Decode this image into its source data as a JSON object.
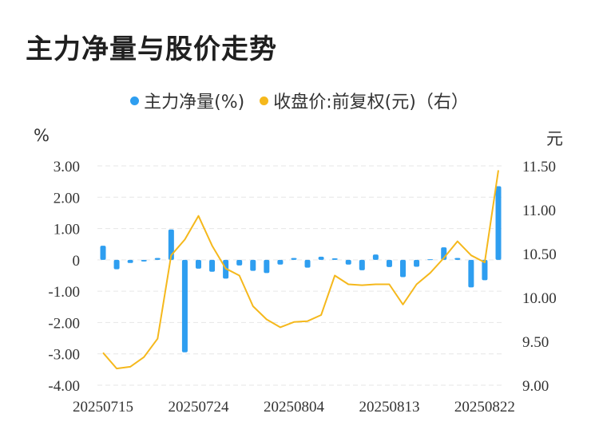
{
  "chart_data": {
    "type": "bar",
    "title": "主力净量与股价走势",
    "legend": [
      {
        "label": "主力净量(%)",
        "color": "#2e9ef0"
      },
      {
        "label": "收盘价:前复权(元)（右）",
        "color": "#f5b81c"
      }
    ],
    "y_left_unit": "%",
    "y_right_unit": "元",
    "y_left_range": [
      -4,
      3
    ],
    "y_left_ticks": [
      "3.00",
      "2.00",
      "1.00",
      "0",
      "-1.00",
      "-2.00",
      "-3.00",
      "-4.00"
    ],
    "y_right_range": [
      9.0,
      11.5
    ],
    "y_right_ticks": [
      "11.50",
      "11.00",
      "10.50",
      "10.00",
      "9.50",
      "9.00"
    ],
    "x_tick_labels": [
      "20250715",
      "20250724",
      "20250804",
      "20250813",
      "20250822"
    ],
    "x_tick_indices": [
      0,
      7,
      14,
      21,
      28
    ],
    "series": [
      {
        "name": "主力净量(%)",
        "type": "bar",
        "axis": "left",
        "color": "#2e9ef0",
        "values": [
          0.45,
          -0.3,
          -0.1,
          -0.05,
          0.06,
          0.97,
          -2.95,
          -0.28,
          -0.38,
          -0.6,
          -0.18,
          -0.35,
          -0.42,
          -0.15,
          0.06,
          -0.25,
          0.1,
          0.05,
          -0.15,
          -0.33,
          0.17,
          -0.23,
          -0.55,
          -0.22,
          0.02,
          0.4,
          0.06,
          -0.88,
          -0.65,
          2.35
        ]
      },
      {
        "name": "收盘价:前复权(元)（右）",
        "type": "line",
        "axis": "right",
        "color": "#f5b81c",
        "values": [
          9.37,
          9.19,
          9.21,
          9.32,
          9.53,
          10.48,
          10.66,
          10.93,
          10.59,
          10.33,
          10.25,
          9.9,
          9.75,
          9.66,
          9.72,
          9.73,
          9.8,
          10.25,
          10.15,
          10.14,
          10.15,
          10.15,
          9.92,
          10.15,
          10.28,
          10.45,
          10.64,
          10.48,
          10.4,
          11.45
        ]
      }
    ]
  }
}
